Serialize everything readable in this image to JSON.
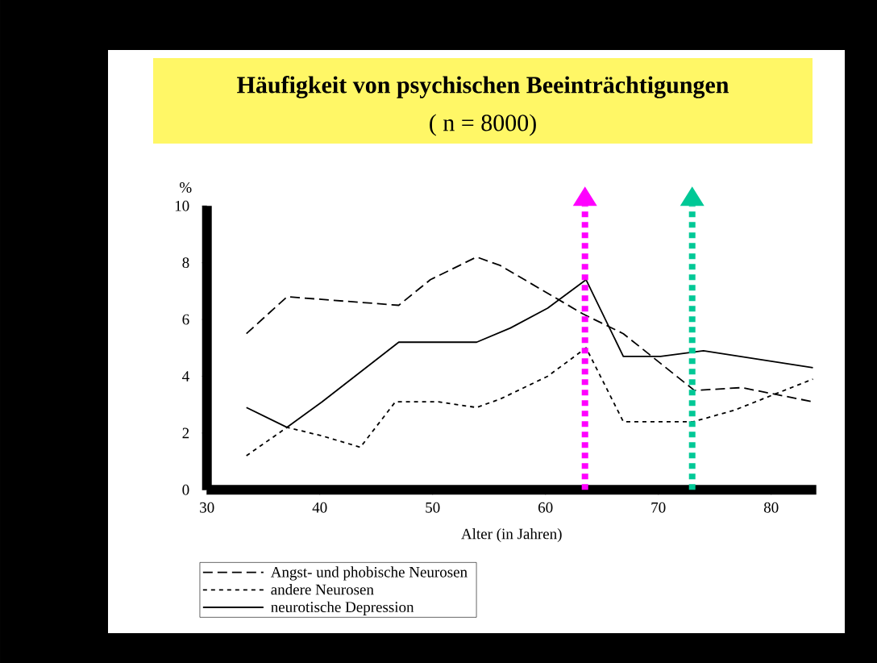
{
  "chart_data": {
    "type": "line",
    "title": "Häufigkeit von psychischen Beeinträchtigungen",
    "subtitle": "( n = 8000)",
    "xlabel": "Alter (in Jahren)",
    "ylabel": "%",
    "xlim": [
      30,
      84
    ],
    "ylim": [
      0,
      10
    ],
    "xticks": [
      30,
      40,
      50,
      60,
      70,
      80
    ],
    "yticks": [
      0,
      2,
      4,
      6,
      8,
      10
    ],
    "grid": false,
    "legend": "bottom",
    "marker": "none",
    "series": [
      {
        "name": "Angst- und phobische Neurosen",
        "color": "#000000",
        "line_style": "dashed",
        "x": [
          33.5,
          37.1,
          47.0,
          49.8,
          53.9,
          56.0,
          63.3,
          66.9,
          73.2,
          77.4,
          83.7
        ],
        "values": [
          5.5,
          6.8,
          6.5,
          7.4,
          8.2,
          7.9,
          6.2,
          5.5,
          3.5,
          3.6,
          3.1
        ]
      },
      {
        "name": "andere Neurosen",
        "color": "#000000",
        "line_style": "dotted",
        "x": [
          33.5,
          37.1,
          40.2,
          43.6,
          46.7,
          50.5,
          53.9,
          56.0,
          60.2,
          63.6,
          66.9,
          73.1,
          76.7,
          83.7
        ],
        "values": [
          1.2,
          2.2,
          1.9,
          1.5,
          3.1,
          3.1,
          2.9,
          3.2,
          4.0,
          5.0,
          2.4,
          2.4,
          2.8,
          3.9
        ]
      },
      {
        "name": "neurotische Depression",
        "color": "#000000",
        "line_style": "solid",
        "x": [
          33.5,
          37.1,
          40.2,
          47.0,
          53.9,
          56.9,
          60.2,
          63.6,
          66.9,
          70.2,
          74.0,
          83.7
        ],
        "values": [
          2.9,
          2.2,
          3.1,
          5.2,
          5.2,
          5.7,
          6.4,
          7.4,
          4.7,
          4.7,
          4.9,
          4.3
        ]
      }
    ],
    "ref_lines": [
      {
        "axis": "x",
        "value": 63.5,
        "color": "#ff00ff",
        "line_style": "dotted"
      },
      {
        "axis": "x",
        "value": 73.0,
        "color": "#00c896",
        "line_style": "dotted"
      }
    ]
  }
}
